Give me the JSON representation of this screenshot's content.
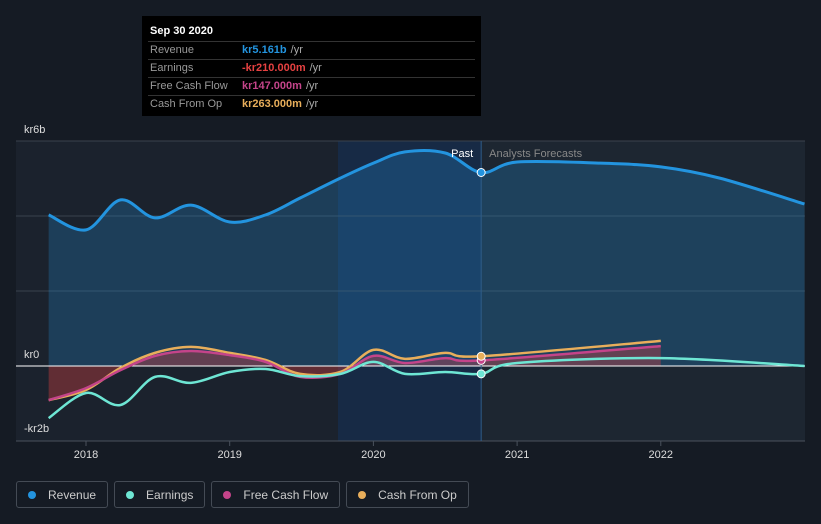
{
  "tooltip": {
    "date": "Sep 30 2020",
    "rows": [
      {
        "label": "Revenue",
        "value": "kr5.161b",
        "unit": "/yr",
        "color": "#2394df"
      },
      {
        "label": "Earnings",
        "value": "-kr210.000m",
        "unit": "/yr",
        "color": "#e64141"
      },
      {
        "label": "Free Cash Flow",
        "value": "kr147.000m",
        "unit": "/yr",
        "color": "#c4448a"
      },
      {
        "label": "Cash From Op",
        "value": "kr263.000m",
        "unit": "/yr",
        "color": "#e8ae5b"
      }
    ]
  },
  "labels": {
    "past": "Past",
    "forecast": "Analysts Forecasts"
  },
  "legend": [
    {
      "label": "Revenue",
      "color": "#2394df"
    },
    {
      "label": "Earnings",
      "color": "#6ee6d4"
    },
    {
      "label": "Free Cash Flow",
      "color": "#c4448a"
    },
    {
      "label": "Cash From Op",
      "color": "#e8ae5b"
    }
  ],
  "chart_data": {
    "type": "line",
    "unit": "kr billions",
    "ylim": [
      -2,
      6
    ],
    "xlim": [
      2017.5,
      2023
    ],
    "y_ticks": [
      {
        "v": 6,
        "label": "kr6b"
      },
      {
        "v": 0,
        "label": "kr0"
      },
      {
        "v": -2,
        "label": "-kr2b"
      }
    ],
    "x_ticks": [
      {
        "v": 2018,
        "label": "2018"
      },
      {
        "v": 2019,
        "label": "2019"
      },
      {
        "v": 2020,
        "label": "2020"
      },
      {
        "v": 2021,
        "label": "2021"
      },
      {
        "v": 2022,
        "label": "2022"
      }
    ],
    "past_end": 2020.75,
    "series": [
      {
        "name": "Revenue",
        "color": "#2394df",
        "x": [
          2017.74,
          2018.0,
          2018.24,
          2018.48,
          2018.73,
          2019.0,
          2019.25,
          2019.49,
          2019.77,
          2020.0,
          2020.22,
          2020.5,
          2020.75,
          2021.0,
          2021.58,
          2022.0,
          2022.41,
          2023.0
        ],
        "y": [
          4.03,
          3.63,
          4.43,
          3.95,
          4.29,
          3.84,
          4.03,
          4.48,
          5.01,
          5.41,
          5.71,
          5.68,
          5.16,
          5.44,
          5.41,
          5.31,
          5.01,
          4.32
        ]
      },
      {
        "name": "Earnings",
        "color": "#6ee6d4",
        "x": [
          2017.74,
          2018.0,
          2018.24,
          2018.48,
          2018.73,
          2019.0,
          2019.25,
          2019.49,
          2019.77,
          2020.0,
          2020.22,
          2020.5,
          2020.75,
          2021.0,
          2022.0,
          2023.0
        ],
        "y": [
          -1.39,
          -0.72,
          -1.04,
          -0.29,
          -0.45,
          -0.16,
          -0.08,
          -0.27,
          -0.21,
          0.11,
          -0.21,
          -0.16,
          -0.21,
          0.08,
          0.21,
          0
        ]
      },
      {
        "name": "Free Cash Flow",
        "color": "#c4448a",
        "x": [
          2017.74,
          2018.0,
          2018.24,
          2018.48,
          2018.73,
          2019.0,
          2019.25,
          2019.49,
          2019.77,
          2020.0,
          2020.22,
          2020.5,
          2020.75,
          2022.0
        ],
        "y": [
          -0.91,
          -0.59,
          -0.11,
          0.27,
          0.4,
          0.29,
          0.11,
          -0.29,
          -0.21,
          0.27,
          0.08,
          0.21,
          0.15,
          0.53
        ]
      },
      {
        "name": "Cash From Op",
        "color": "#e8ae5b",
        "x": [
          2017.74,
          2018.0,
          2018.24,
          2018.48,
          2018.73,
          2019.0,
          2019.25,
          2019.49,
          2019.77,
          2020.0,
          2020.22,
          2020.5,
          2020.75,
          2022.0
        ],
        "y": [
          -0.91,
          -0.64,
          -0.05,
          0.35,
          0.51,
          0.35,
          0.16,
          -0.21,
          -0.16,
          0.43,
          0.19,
          0.35,
          0.26,
          0.67
        ]
      }
    ]
  }
}
